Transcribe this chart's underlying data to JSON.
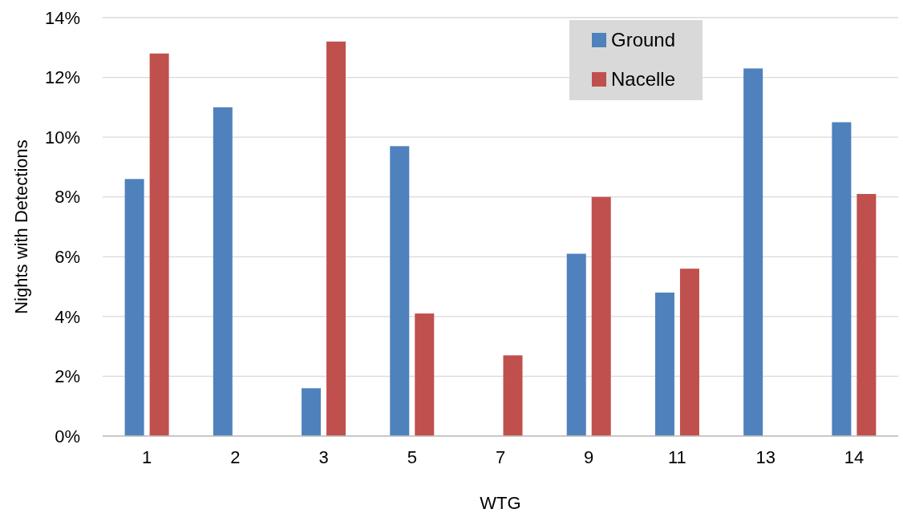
{
  "chart_data": {
    "type": "bar",
    "xlabel": "WTG",
    "ylabel": "Nights with Detections",
    "categories": [
      "1",
      "2",
      "3",
      "5",
      "7",
      "9",
      "11",
      "13",
      "14"
    ],
    "series": [
      {
        "name": "Ground",
        "color": "#4f81bd",
        "values": [
          8.6,
          11.0,
          1.6,
          9.7,
          0,
          6.1,
          4.8,
          12.3,
          10.5
        ]
      },
      {
        "name": "Nacelle",
        "color": "#c0504d",
        "values": [
          12.8,
          0,
          13.2,
          4.1,
          2.7,
          8.0,
          5.6,
          0,
          8.1
        ]
      }
    ],
    "ylim": [
      0,
      14
    ],
    "yticks": [
      {
        "value": 0,
        "label": "0%"
      },
      {
        "value": 2,
        "label": "2%"
      },
      {
        "value": 4,
        "label": "4%"
      },
      {
        "value": 6,
        "label": "6%"
      },
      {
        "value": 8,
        "label": "8%"
      },
      {
        "value": 10,
        "label": "10%"
      },
      {
        "value": 12,
        "label": "12%"
      },
      {
        "value": 14,
        "label": "14%"
      }
    ],
    "grid": "y",
    "legend": "top right"
  }
}
